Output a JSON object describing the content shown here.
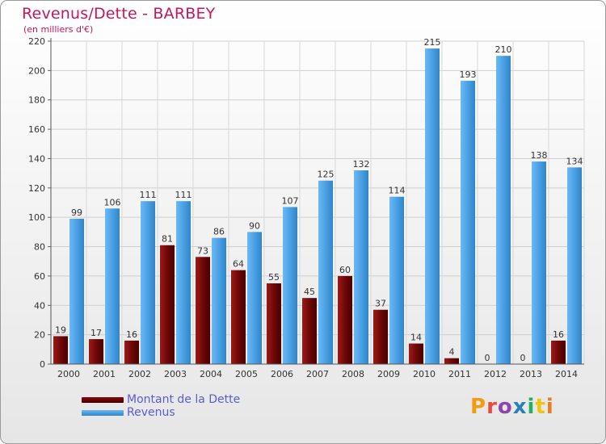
{
  "header": {
    "title": "Revenus/Dette - BARBEY",
    "subtitle": "(en milliers d'€)"
  },
  "legend": {
    "debt_label": "Montant de la Dette",
    "revenue_label": "Revenus"
  },
  "brand": {
    "name": "Proxiti",
    "colors": [
      "#f39c12",
      "#e74c3c",
      "#8e44ad",
      "#2980b9",
      "#27ae60",
      "#f1c40f",
      "#e67e22"
    ]
  },
  "colors": {
    "debt": "#7a0d0d",
    "revenue": "#4fa3e6",
    "title": "#c2185b",
    "legend_text": "#5b5bd6"
  },
  "chart_data": {
    "type": "bar",
    "title": "Revenus/Dette - BARBEY",
    "ylabel": "(en milliers d'€)",
    "xlabel": "",
    "ylim": [
      0,
      220
    ],
    "yticks": [
      0,
      20,
      40,
      60,
      80,
      100,
      120,
      140,
      160,
      180,
      200,
      220
    ],
    "grid": true,
    "legend_position": "bottom-left",
    "categories": [
      "2000",
      "2001",
      "2002",
      "2003",
      "2004",
      "2005",
      "2006",
      "2007",
      "2008",
      "2009",
      "2010",
      "2011",
      "2012",
      "2013",
      "2014"
    ],
    "series": [
      {
        "name": "Montant de la Dette",
        "values": [
          19,
          17,
          16,
          81,
          73,
          64,
          55,
          45,
          60,
          37,
          14,
          4,
          0,
          0,
          16
        ]
      },
      {
        "name": "Revenus",
        "values": [
          99,
          106,
          111,
          111,
          86,
          90,
          107,
          125,
          132,
          114,
          215,
          193,
          210,
          138,
          134
        ]
      }
    ]
  }
}
